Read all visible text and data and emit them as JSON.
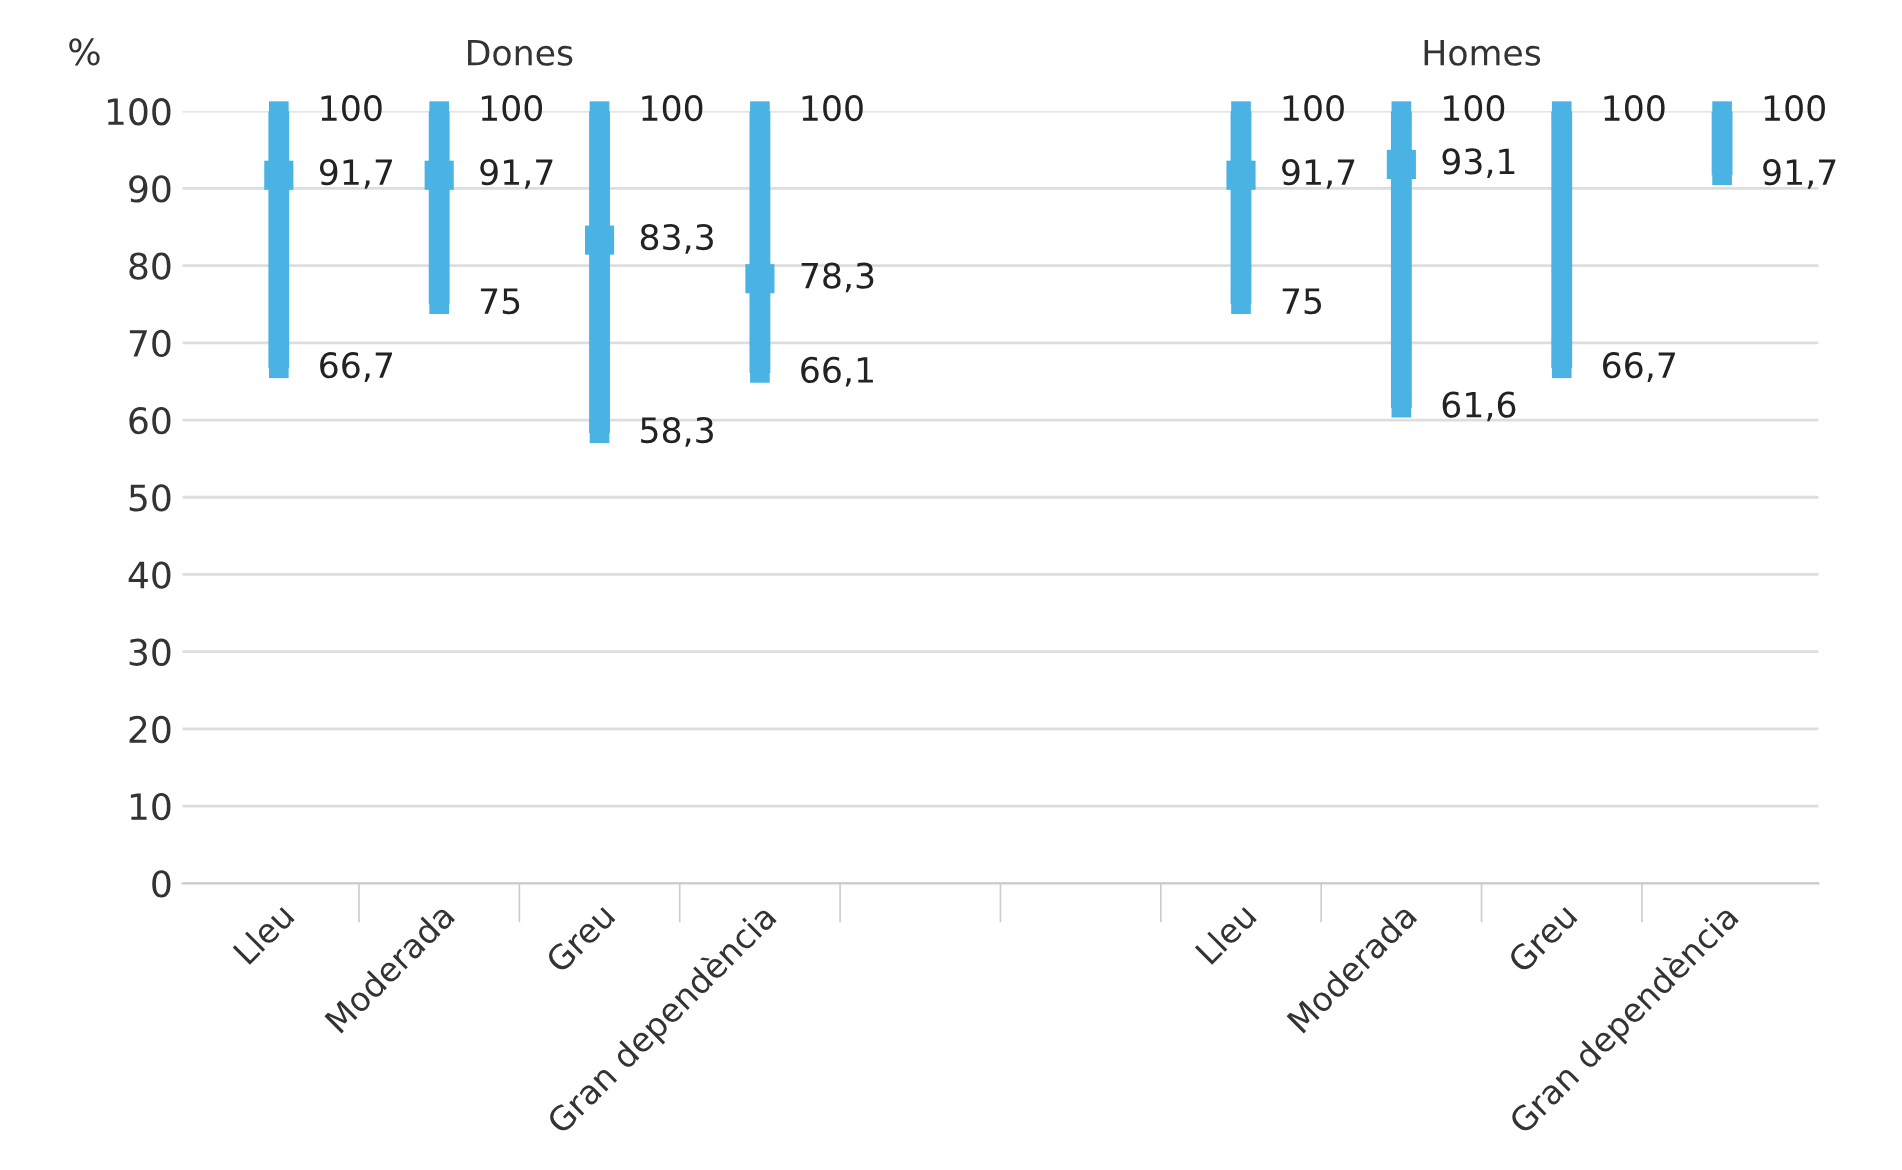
{
  "chart_data": {
    "type": "bar",
    "ylabel": "%",
    "categories": [
      "Lleu",
      "Moderada",
      "Greu",
      "Gran dependència",
      null,
      null,
      "Lleu",
      "Moderada",
      "Greu",
      "Gran dependència"
    ],
    "series": [
      {
        "color": "#4ab3e3",
        "base": [
          66.7,
          75,
          58.3,
          66.1,
          null,
          null,
          75,
          61.6,
          66.7,
          91.7
        ],
        "values": [
          33.3,
          25,
          41.7,
          33.9,
          null,
          null,
          25,
          38.4,
          33.3,
          8.3
        ]
      },
      {
        "type": "scatter",
        "marker": "square",
        "color": "#4ab3e3",
        "values": [
          91.7,
          91.7,
          83.3,
          78.3,
          null,
          null,
          91.7,
          93.1,
          null,
          null
        ],
        "value_labels": [
          "91,7",
          "91,7",
          "83,3",
          "78,3",
          null,
          null,
          "91,7",
          "93,1",
          null,
          null
        ]
      },
      {
        "type": "scatter",
        "marker": "square",
        "color": "#4ab3e3",
        "values": [
          100,
          100,
          100,
          100,
          null,
          null,
          100,
          100,
          100,
          100
        ],
        "value_labels": [
          "100",
          "100",
          "100",
          "100",
          null,
          null,
          "100",
          "100",
          "100",
          "100"
        ]
      },
      {
        "type": "scatter",
        "marker": "square",
        "color": "#4ab3e3",
        "values": [
          66.7,
          75,
          58.3,
          66.1,
          null,
          null,
          75,
          61.6,
          66.7,
          91.7
        ],
        "value_labels": [
          "66,7",
          "75",
          "58,3",
          "66,1",
          null,
          null,
          "75",
          "61,6",
          "66,7",
          "91,7"
        ]
      }
    ],
    "annotations": [
      "Dones",
      "Homes"
    ],
    "ylim": [
      0,
      100
    ],
    "yticks": [
      0,
      10,
      20,
      30,
      40,
      50,
      60,
      70,
      80,
      90,
      100
    ],
    "grid": "y"
  }
}
